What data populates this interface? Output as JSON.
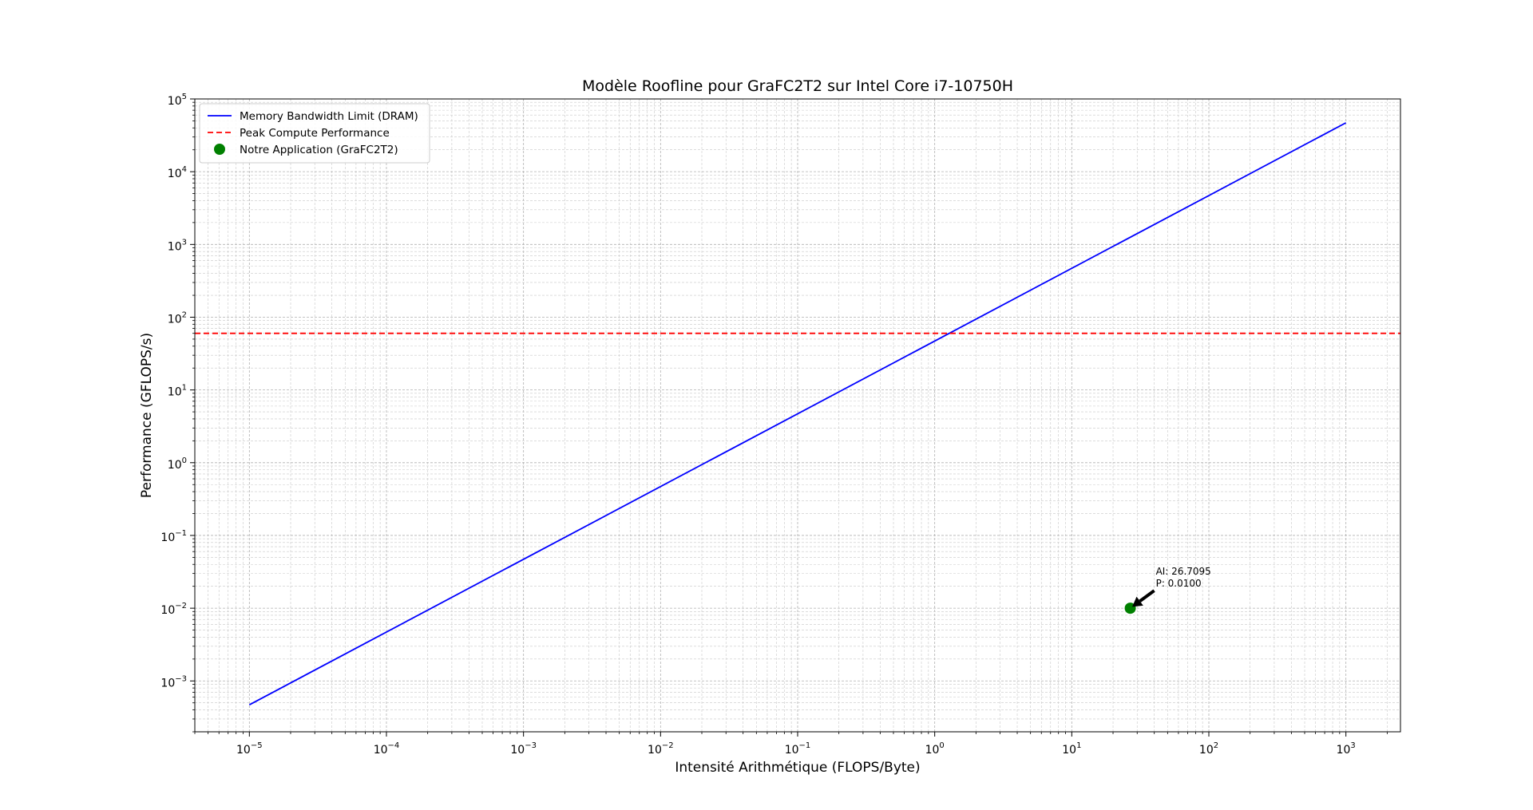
{
  "chart_data": {
    "type": "line",
    "title": "Modèle Roofline pour GraFC2T2 sur Intel Core i7-10750H",
    "xlabel": "Intensité Arithmétique (FLOPS/Byte)",
    "ylabel": "Performance (GFLOPS/s)",
    "xscale": "log",
    "yscale": "log",
    "xlim": [
      4e-06,
      2500
    ],
    "ylim": [
      0.0002,
      100000
    ],
    "grid": true,
    "legend_position": "upper-left",
    "x_ticks": [
      {
        "value": 1e-05,
        "base": "10",
        "exp": "−5"
      },
      {
        "value": 0.0001,
        "base": "10",
        "exp": "−4"
      },
      {
        "value": 0.001,
        "base": "10",
        "exp": "−3"
      },
      {
        "value": 0.01,
        "base": "10",
        "exp": "−2"
      },
      {
        "value": 0.1,
        "base": "10",
        "exp": "−1"
      },
      {
        "value": 1,
        "base": "10",
        "exp": "0"
      },
      {
        "value": 10,
        "base": "10",
        "exp": "1"
      },
      {
        "value": 100,
        "base": "10",
        "exp": "2"
      },
      {
        "value": 1000,
        "base": "10",
        "exp": "3"
      }
    ],
    "y_ticks": [
      {
        "value": 0.001,
        "base": "10",
        "exp": "−3"
      },
      {
        "value": 0.01,
        "base": "10",
        "exp": "−2"
      },
      {
        "value": 0.1,
        "base": "10",
        "exp": "−1"
      },
      {
        "value": 1,
        "base": "10",
        "exp": "0"
      },
      {
        "value": 10,
        "base": "10",
        "exp": "1"
      },
      {
        "value": 100,
        "base": "10",
        "exp": "2"
      },
      {
        "value": 1000,
        "base": "10",
        "exp": "3"
      },
      {
        "value": 10000,
        "base": "10",
        "exp": "4"
      },
      {
        "value": 100000,
        "base": "10",
        "exp": "5"
      }
    ],
    "series": [
      {
        "name": "Memory Bandwidth Limit (DRAM)",
        "kind": "line",
        "color": "#0000ff",
        "style": "solid",
        "x": [
          1e-05,
          1000
        ],
        "y": [
          0.00047,
          47000
        ]
      },
      {
        "name": "Peak Compute Performance",
        "kind": "hline",
        "color": "#ff0000",
        "style": "dashed",
        "y": 60
      },
      {
        "name": "Notre Application (GraFC2T2)",
        "kind": "scatter",
        "color": "#008000",
        "x": [
          26.7095
        ],
        "y": [
          0.01
        ]
      }
    ],
    "annotation": {
      "lines": [
        "AI: 26.7095",
        "P: 0.0100"
      ],
      "x": 26.7095,
      "y": 0.01
    }
  }
}
